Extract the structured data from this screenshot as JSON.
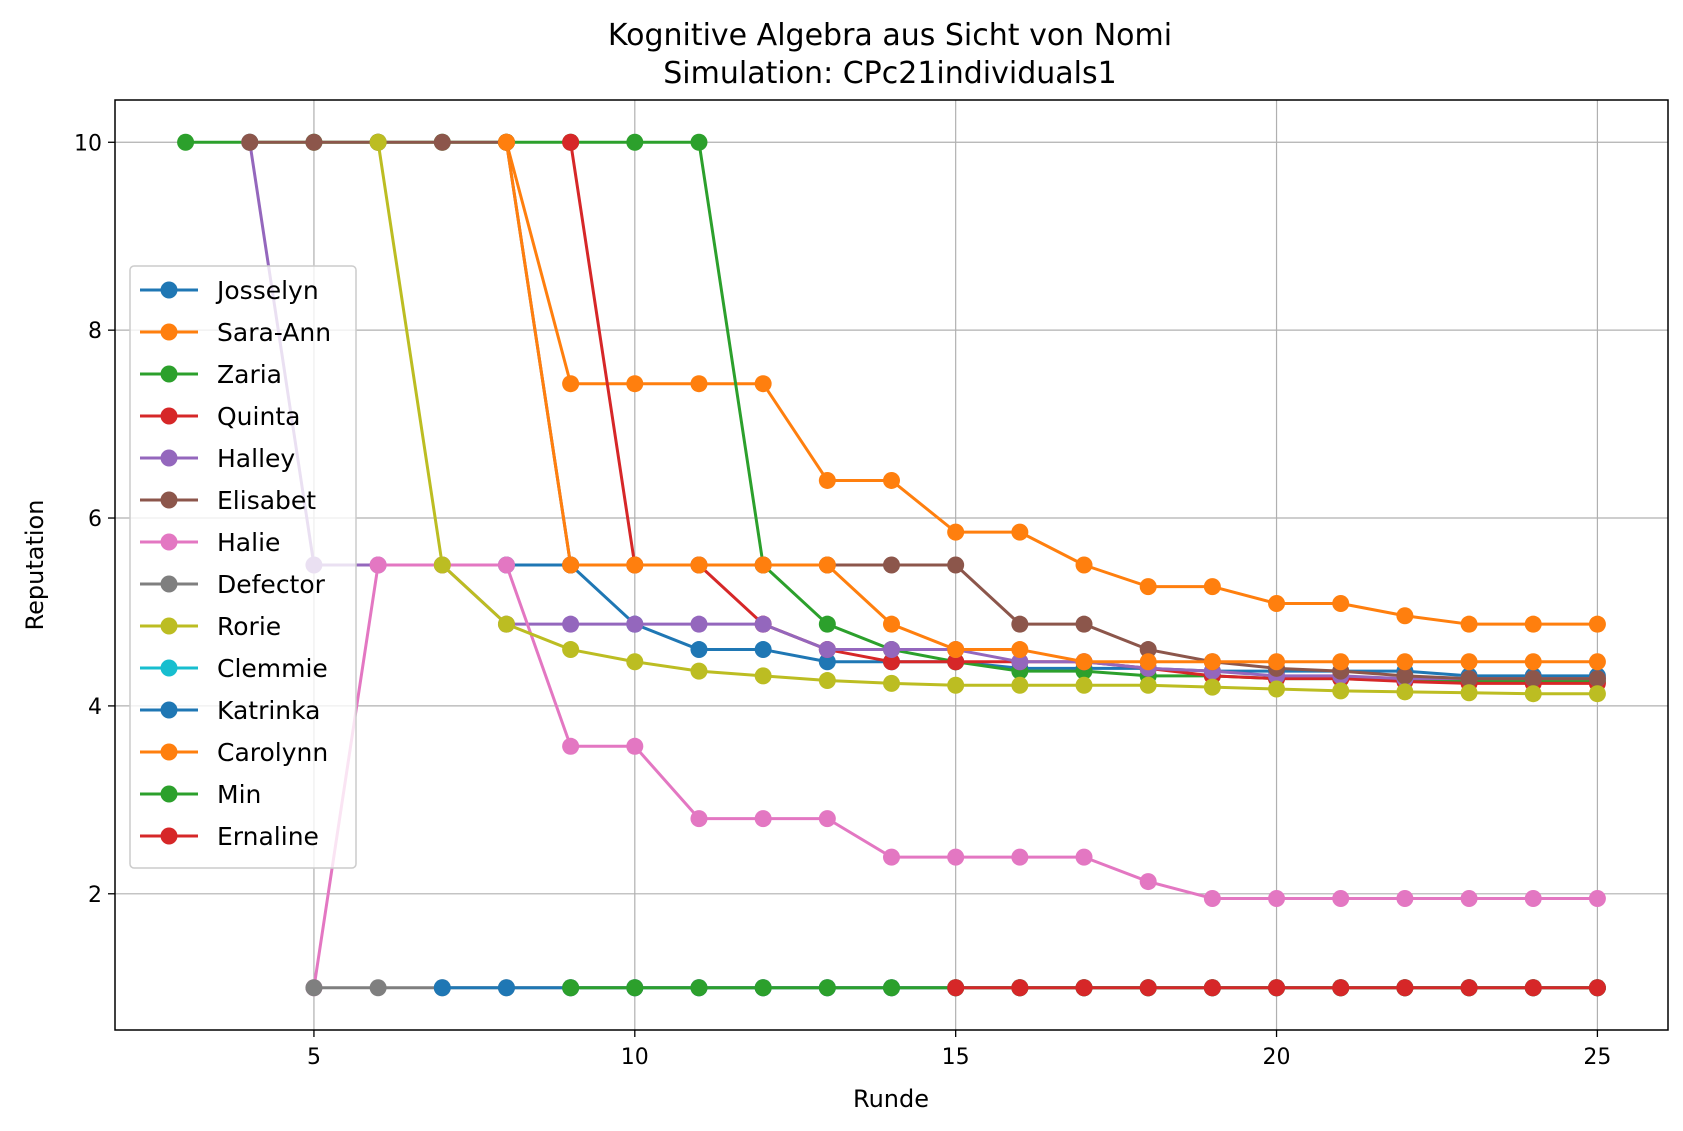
{
  "chart_data": {
    "type": "line",
    "title": "Kognitive Algebra aus Sicht von Nomi",
    "subtitle": "Simulation: CPc21individuals1",
    "xlabel": "Runde",
    "ylabel": "Reputation",
    "xlim": [
      1.9,
      26.1
    ],
    "ylim": [
      0.55,
      10.45
    ],
    "xticks": [
      5,
      10,
      15,
      20,
      25
    ],
    "yticks": [
      2,
      4,
      6,
      8,
      10
    ],
    "grid": true,
    "legend_position": "center-left",
    "series": [
      {
        "name": "Josselyn",
        "color": "#1f77b4",
        "x": [
          8,
          9,
          10,
          11,
          12,
          13,
          14,
          15,
          16,
          17,
          18,
          19,
          20,
          21,
          22,
          23,
          24,
          25
        ],
        "y": [
          5.5,
          5.5,
          4.87,
          4.6,
          4.6,
          4.47,
          4.47,
          4.47,
          4.4,
          4.4,
          4.4,
          4.37,
          4.37,
          4.37,
          4.37,
          4.32,
          4.32,
          4.32
        ]
      },
      {
        "name": "Sara-Ann",
        "color": "#ff7f0e",
        "x": [
          8,
          9,
          10,
          11,
          12,
          13,
          14,
          15,
          16,
          17,
          18,
          19,
          20,
          21,
          22,
          23,
          24,
          25
        ],
        "y": [
          10,
          7.43,
          7.43,
          7.43,
          7.43,
          6.4,
          6.4,
          5.85,
          5.85,
          5.5,
          5.27,
          5.27,
          5.09,
          5.09,
          4.96,
          4.87,
          4.87,
          4.87
        ]
      },
      {
        "name": "Zaria",
        "color": "#2ca02c",
        "x": [
          3,
          4,
          5,
          6,
          7,
          8,
          9,
          10,
          11,
          12,
          13,
          14,
          15,
          16,
          17,
          18,
          19,
          20,
          21,
          22,
          23,
          24,
          25
        ],
        "y": [
          10,
          10,
          10,
          10,
          10,
          10,
          10,
          10,
          10,
          5.5,
          4.87,
          4.6,
          4.47,
          4.37,
          4.37,
          4.32,
          4.32,
          4.29,
          4.29,
          4.27,
          4.26,
          4.26,
          4.26
        ]
      },
      {
        "name": "Quinta",
        "color": "#d62728",
        "x": [
          9,
          10,
          11,
          12,
          13,
          14,
          15,
          16,
          17,
          18,
          19,
          20,
          21,
          22,
          23,
          24,
          25
        ],
        "y": [
          10,
          5.5,
          5.5,
          4.87,
          4.6,
          4.47,
          4.47,
          4.47,
          4.47,
          4.4,
          4.32,
          4.29,
          4.29,
          4.26,
          4.24,
          4.24,
          4.24
        ]
      },
      {
        "name": "Halley",
        "color": "#9467bd",
        "x": [
          4,
          5,
          6,
          7,
          8,
          9,
          10,
          11,
          12,
          13,
          14,
          15,
          16,
          17,
          18,
          19,
          20,
          21,
          22,
          23,
          24,
          25
        ],
        "y": [
          10,
          5.5,
          5.5,
          5.5,
          4.87,
          4.87,
          4.87,
          4.87,
          4.87,
          4.6,
          4.6,
          4.6,
          4.47,
          4.47,
          4.4,
          4.37,
          4.32,
          4.32,
          4.29,
          4.29,
          4.29,
          4.29
        ]
      },
      {
        "name": "Elisabet",
        "color": "#8c564b",
        "x": [
          4,
          5,
          6,
          7,
          8,
          9,
          10,
          11,
          12,
          13,
          14,
          15,
          16,
          17,
          18,
          19,
          20,
          21,
          22,
          23,
          24,
          25
        ],
        "y": [
          10,
          10,
          10,
          10,
          10,
          5.5,
          5.5,
          5.5,
          5.5,
          5.5,
          5.5,
          5.5,
          4.87,
          4.87,
          4.6,
          4.47,
          4.4,
          4.37,
          4.32,
          4.29,
          4.29,
          4.29
        ]
      },
      {
        "name": "Halie",
        "color": "#e377c2",
        "x": [
          5,
          6,
          7,
          8,
          9,
          10,
          11,
          12,
          13,
          14,
          15,
          16,
          17,
          18,
          19,
          20,
          21,
          22,
          23,
          24,
          25
        ],
        "y": [
          1,
          5.5,
          5.5,
          5.5,
          3.57,
          3.57,
          2.8,
          2.8,
          2.8,
          2.39,
          2.39,
          2.39,
          2.39,
          2.13,
          1.95,
          1.95,
          1.95,
          1.95,
          1.95,
          1.95,
          1.95
        ]
      },
      {
        "name": "Defector",
        "color": "#7f7f7f",
        "x": [
          5,
          6,
          7,
          8,
          9,
          10,
          11,
          12,
          13,
          14,
          15,
          16,
          17,
          18,
          19,
          20,
          21,
          22,
          23,
          24,
          25
        ],
        "y": [
          1,
          1,
          1,
          1,
          1,
          1,
          1,
          1,
          1,
          1,
          1,
          1,
          1,
          1,
          1,
          1,
          1,
          1,
          1,
          1,
          1
        ]
      },
      {
        "name": "Rorie",
        "color": "#bcbd22",
        "x": [
          6,
          7,
          8,
          9,
          10,
          11,
          12,
          13,
          14,
          15,
          16,
          17,
          18,
          19,
          20,
          21,
          22,
          23,
          24,
          25
        ],
        "y": [
          10,
          5.5,
          4.87,
          4.6,
          4.47,
          4.37,
          4.32,
          4.27,
          4.24,
          4.22,
          4.22,
          4.22,
          4.22,
          4.2,
          4.18,
          4.16,
          4.15,
          4.14,
          4.13,
          4.13
        ]
      },
      {
        "name": "Clemmie",
        "color": "#17becf",
        "x": [],
        "y": []
      },
      {
        "name": "Katrinka",
        "color": "#1f77b4",
        "x": [
          7,
          8,
          9,
          10,
          11,
          12,
          13,
          14,
          15,
          16,
          17,
          18,
          19,
          20,
          21,
          22,
          23,
          24,
          25
        ],
        "y": [
          1,
          1,
          1,
          1,
          1,
          1,
          1,
          1,
          1,
          1,
          1,
          1,
          1,
          1,
          1,
          1,
          1,
          1,
          1
        ]
      },
      {
        "name": "Carolynn",
        "color": "#ff7f0e",
        "x": [
          8,
          9,
          10,
          11,
          12,
          13,
          14,
          15,
          16,
          17,
          18,
          19,
          20,
          21,
          22,
          23,
          24,
          25
        ],
        "y": [
          10,
          5.5,
          5.5,
          5.5,
          5.5,
          5.5,
          4.87,
          4.6,
          4.6,
          4.47,
          4.47,
          4.47,
          4.47,
          4.47,
          4.47,
          4.47,
          4.47,
          4.47
        ]
      },
      {
        "name": "Min",
        "color": "#2ca02c",
        "x": [
          9,
          10,
          11,
          12,
          13,
          14,
          15,
          16,
          17,
          18,
          19,
          20,
          21,
          22,
          23,
          24,
          25
        ],
        "y": [
          1,
          1,
          1,
          1,
          1,
          1,
          1,
          1,
          1,
          1,
          1,
          1,
          1,
          1,
          1,
          1,
          1
        ]
      },
      {
        "name": "Ernaline",
        "color": "#d62728",
        "x": [
          15,
          16,
          17,
          18,
          19,
          20,
          21,
          22,
          23,
          24,
          25
        ],
        "y": [
          1,
          1,
          1,
          1,
          1,
          1,
          1,
          1,
          1,
          1,
          1
        ]
      }
    ]
  }
}
